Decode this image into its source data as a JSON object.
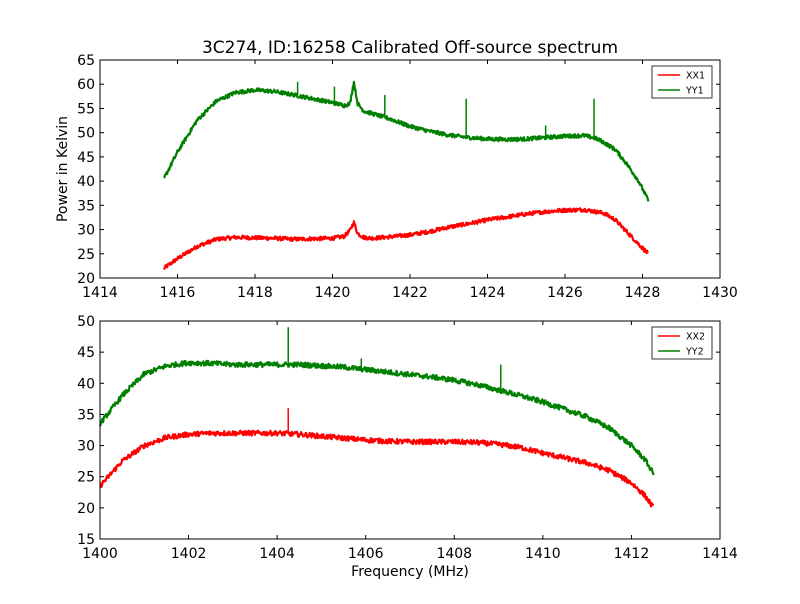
{
  "chart_data": [
    {
      "type": "line",
      "title": "3C274, ID:16258 Calibrated Off-source spectrum",
      "xlabel": "",
      "ylabel": "Power in Kelvin",
      "xlim": [
        1414,
        1430
      ],
      "ylim": [
        20,
        65
      ],
      "xticks": [
        1414,
        1416,
        1418,
        1420,
        1422,
        1424,
        1426,
        1428,
        1430
      ],
      "yticks": [
        20,
        25,
        30,
        35,
        40,
        45,
        50,
        55,
        60,
        65
      ],
      "grid": false,
      "legend_position": "top-right",
      "series": [
        {
          "name": "XX1",
          "color": "#ff0000",
          "x": [
            1415.65,
            1416.0,
            1416.5,
            1417.0,
            1417.5,
            1418.0,
            1418.5,
            1419.0,
            1419.5,
            1420.0,
            1420.3,
            1420.45,
            1420.55,
            1420.65,
            1420.8,
            1421.0,
            1421.5,
            1422.0,
            1422.5,
            1423.0,
            1423.5,
            1424.0,
            1424.5,
            1425.0,
            1425.5,
            1426.0,
            1426.5,
            1427.0,
            1427.3,
            1427.6,
            1427.9,
            1428.15
          ],
          "y": [
            22.0,
            24.0,
            26.5,
            28.0,
            28.4,
            28.3,
            28.2,
            28.0,
            28.1,
            28.2,
            28.6,
            29.8,
            31.5,
            29.2,
            28.4,
            28.2,
            28.5,
            28.9,
            29.6,
            30.5,
            31.2,
            32.0,
            32.6,
            33.2,
            33.7,
            34.0,
            34.1,
            33.4,
            32.0,
            29.5,
            27.0,
            25.0
          ],
          "spikes": []
        },
        {
          "name": "YY1",
          "color": "#008000",
          "x": [
            1415.65,
            1416.0,
            1416.5,
            1417.0,
            1417.5,
            1418.0,
            1418.5,
            1419.0,
            1419.5,
            1420.0,
            1420.3,
            1420.45,
            1420.55,
            1420.65,
            1420.8,
            1421.0,
            1421.5,
            1422.0,
            1422.5,
            1423.0,
            1423.5,
            1424.0,
            1424.5,
            1425.0,
            1425.5,
            1426.0,
            1426.5,
            1426.8,
            1427.0,
            1427.3,
            1427.6,
            1427.9,
            1428.15
          ],
          "y": [
            40.5,
            46.0,
            52.5,
            56.5,
            58.3,
            58.8,
            58.5,
            57.8,
            57.0,
            56.2,
            55.6,
            56.0,
            60.5,
            56.0,
            54.5,
            54.0,
            52.8,
            51.3,
            50.3,
            49.5,
            49.0,
            48.7,
            48.6,
            48.7,
            49.0,
            49.3,
            49.4,
            48.8,
            48.0,
            46.5,
            43.5,
            40.0,
            36.0
          ],
          "spikes": [
            [
              1419.1,
              60.5
            ],
            [
              1420.05,
              59.5
            ],
            [
              1421.35,
              57.8
            ],
            [
              1423.45,
              57.0
            ],
            [
              1425.5,
              51.5
            ],
            [
              1426.75,
              57.0
            ]
          ]
        }
      ]
    },
    {
      "type": "line",
      "title": "",
      "xlabel": "Frequency (MHz)",
      "ylabel": "",
      "xlim": [
        1400,
        1414
      ],
      "ylim": [
        15,
        50
      ],
      "xticks": [
        1400,
        1402,
        1404,
        1406,
        1408,
        1410,
        1412,
        1414
      ],
      "yticks": [
        15,
        20,
        25,
        30,
        35,
        40,
        45,
        50
      ],
      "grid": false,
      "legend_position": "top-right",
      "series": [
        {
          "name": "XX2",
          "color": "#ff0000",
          "x": [
            1400.0,
            1400.5,
            1401.0,
            1401.5,
            1402.0,
            1402.5,
            1403.0,
            1403.5,
            1404.0,
            1404.5,
            1405.0,
            1405.5,
            1406.0,
            1406.5,
            1407.0,
            1407.5,
            1408.0,
            1408.5,
            1409.0,
            1409.5,
            1410.0,
            1410.5,
            1411.0,
            1411.5,
            1412.0,
            1412.3,
            1412.5
          ],
          "y": [
            23.5,
            27.5,
            30.0,
            31.3,
            31.8,
            32.0,
            32.0,
            32.0,
            32.0,
            31.8,
            31.5,
            31.2,
            30.9,
            30.7,
            30.6,
            30.6,
            30.6,
            30.5,
            30.2,
            29.7,
            28.8,
            28.0,
            27.2,
            26.0,
            24.0,
            22.0,
            20.0
          ],
          "spikes": [
            [
              1404.25,
              36.0
            ]
          ]
        },
        {
          "name": "YY2",
          "color": "#008000",
          "x": [
            1400.0,
            1400.5,
            1401.0,
            1401.5,
            1402.0,
            1402.5,
            1403.0,
            1403.5,
            1404.0,
            1404.5,
            1405.0,
            1405.5,
            1406.0,
            1406.5,
            1407.0,
            1407.5,
            1408.0,
            1408.5,
            1409.0,
            1409.5,
            1410.0,
            1410.5,
            1411.0,
            1411.5,
            1412.0,
            1412.3,
            1412.5
          ],
          "y": [
            33.5,
            38.0,
            41.5,
            42.8,
            43.3,
            43.2,
            43.0,
            43.0,
            43.0,
            43.0,
            42.8,
            42.6,
            42.2,
            41.8,
            41.4,
            41.0,
            40.5,
            39.8,
            38.9,
            38.0,
            37.0,
            35.8,
            34.6,
            32.8,
            30.0,
            27.8,
            25.5
          ],
          "spikes": [
            [
              1404.25,
              49.0
            ],
            [
              1405.9,
              44.0
            ],
            [
              1409.05,
              43.0
            ]
          ]
        }
      ]
    }
  ]
}
